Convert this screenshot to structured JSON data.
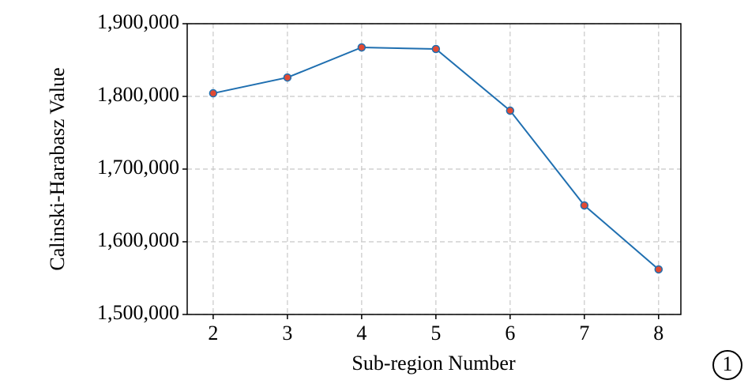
{
  "chart_data": {
    "type": "line",
    "xlabel": "Sub-region Number",
    "ylabel": "Calinski-Harabasz Value",
    "annotation": "1",
    "x": [
      2,
      3,
      4,
      5,
      6,
      7,
      8
    ],
    "series": [
      {
        "name": "Calinski-Harabasz Value",
        "color": "#1f6fb0",
        "marker_color": "#e24a33",
        "values": [
          1804300,
          1826000,
          1867400,
          1865200,
          1780400,
          1650000,
          1562000
        ]
      }
    ],
    "xlim": [
      1.65,
      8.3
    ],
    "ylim": [
      1500000,
      1900000
    ],
    "xticks": [
      2,
      3,
      4,
      5,
      6,
      7,
      8
    ],
    "yticks": [
      {
        "value": 1500000,
        "label": "1,500,000"
      },
      {
        "value": 1600000,
        "label": "1,600,000"
      },
      {
        "value": 1700000,
        "label": "1,700,000"
      },
      {
        "value": 1800000,
        "label": "1,800,000"
      },
      {
        "value": 1900000,
        "label": "1,900,000"
      }
    ],
    "grid": true
  }
}
